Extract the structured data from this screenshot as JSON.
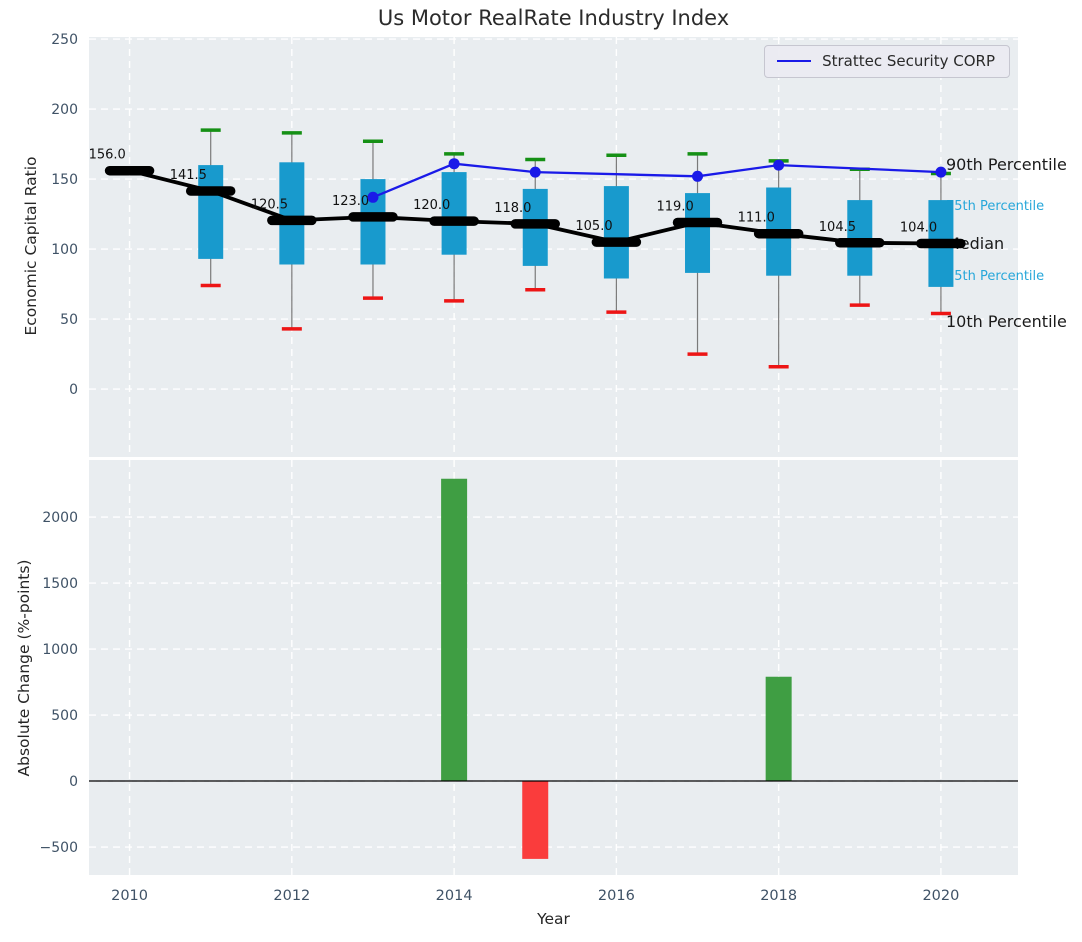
{
  "figure": {
    "title": "Us Motor RealRate Industry Index"
  },
  "style": {
    "plot_bg": "#e9edf0",
    "grid_color": "#ffffff",
    "tick_color": "#3f5266",
    "text_color": "#262626"
  },
  "chart_data": [
    {
      "type": "boxplot+line",
      "title": "Us Motor RealRate Industry Index",
      "ylabel": "Economic Capital Ratio",
      "ylim": [
        -48.5,
        251.5
      ],
      "yticks": [
        0,
        50,
        100,
        150,
        200,
        250
      ],
      "grid": "on",
      "grid_years": [
        2010,
        2012,
        2014,
        2016,
        2018,
        2020
      ],
      "years": [
        2010,
        2011,
        2012,
        2013,
        2014,
        2015,
        2016,
        2017,
        2018,
        2019,
        2020
      ],
      "median_series": {
        "name": "Median",
        "color": "#000000",
        "values": [
          156,
          141.5,
          120.5,
          123,
          120,
          118,
          105,
          119,
          111,
          104.5,
          104
        ],
        "labels": [
          "156.0",
          "141.5",
          "120.5",
          "123.0",
          "120.0",
          "118.0",
          "105.0",
          "119.0",
          "111.0",
          "104.5",
          "104.0"
        ]
      },
      "box_series": {
        "fill": "#189acd",
        "whisker_color": "#7a7a7a",
        "cap_top_color": "#159015",
        "cap_bottom_color": "#ed1515",
        "p90": [
          null,
          185,
          183,
          177,
          168,
          164,
          167,
          168,
          163,
          157,
          154
        ],
        "p75": [
          null,
          160,
          162,
          150,
          155,
          143,
          145,
          140,
          144,
          135,
          135
        ],
        "p25": [
          null,
          93,
          89,
          89,
          96,
          88,
          79,
          83,
          81,
          81,
          73
        ],
        "p10": [
          null,
          74,
          43,
          65,
          63,
          71,
          55,
          25,
          16,
          60,
          54
        ]
      },
      "series": [
        {
          "name": "Median",
          "type": "line",
          "color": "#000000"
        },
        {
          "name": "Strattec Security CORP",
          "type": "line+marker",
          "color": "#1a1ae8",
          "x": [
            2013,
            2014,
            2015,
            2017,
            2018,
            2020
          ],
          "values": [
            137,
            161,
            155,
            152,
            160,
            155
          ]
        }
      ],
      "legend_position": "upper right",
      "annotations": [
        {
          "text": "90th Percentile",
          "value": 160,
          "color": "#1a1a1a",
          "size": 16
        },
        {
          "text": "75th Percentile",
          "value": 130,
          "color": "#27a7da",
          "size": 13
        },
        {
          "text": "Median",
          "value": 104,
          "color": "#1a1a1a",
          "size": 16
        },
        {
          "text": "25th Percentile",
          "value": 80,
          "color": "#27a7da",
          "size": 13
        },
        {
          "text": "10th Percentile",
          "value": 48,
          "color": "#1a1a1a",
          "size": 16
        }
      ]
    },
    {
      "type": "bar",
      "ylabel": "Absolute Change (%-points)",
      "xlabel": "Year",
      "ylim": [
        -712,
        2432
      ],
      "yticks": [
        -500,
        0,
        500,
        1000,
        1500,
        2000
      ],
      "grid": "on",
      "categories": [
        2010,
        2011,
        2012,
        2013,
        2014,
        2015,
        2016,
        2017,
        2018,
        2019,
        2020
      ],
      "values": [
        null,
        null,
        null,
        null,
        2290,
        -590,
        null,
        null,
        790,
        null,
        null
      ],
      "xticks": [
        2010,
        2012,
        2014,
        2016,
        2018,
        2020
      ],
      "bar_colors": {
        "positive": "#3f9e43",
        "negative": "#fa3c3c"
      },
      "zero_line_color": "#000000"
    }
  ]
}
